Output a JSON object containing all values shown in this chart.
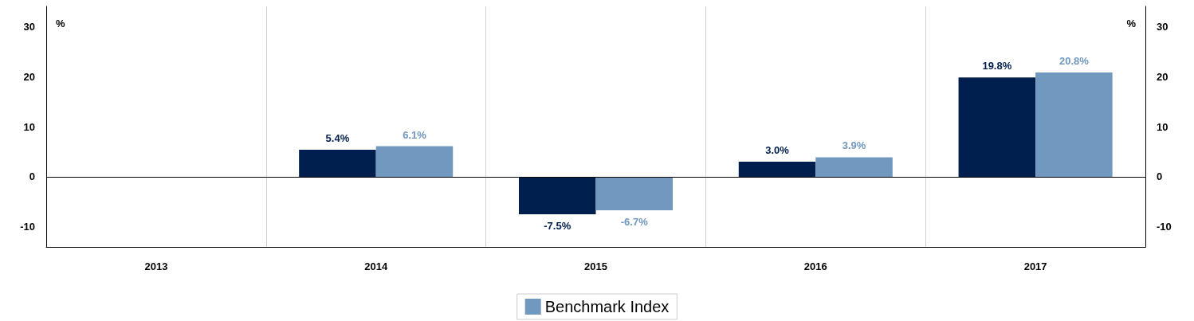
{
  "chart_data": {
    "type": "bar",
    "categories": [
      "2013",
      "2014",
      "2015",
      "2016",
      "2017"
    ],
    "series": [
      {
        "color": "#001f4e",
        "values": [
          null,
          5.4,
          -7.5,
          3.0,
          19.8
        ],
        "value_labels": [
          null,
          "5.4%",
          "-7.5%",
          "3.0%",
          "19.8%"
        ]
      },
      {
        "name": "Benchmark Index",
        "color": "#7199c0",
        "values": [
          null,
          6.1,
          -6.7,
          3.9,
          20.8
        ],
        "value_labels": [
          null,
          "6.1%",
          "-6.7%",
          "3.9%",
          "20.8%"
        ]
      }
    ],
    "ylabel": "%",
    "y2label": "%",
    "ylim": [
      -14,
      34
    ],
    "yticks": [
      -10,
      0,
      10,
      20,
      30
    ],
    "y2lim": [
      -14,
      34
    ],
    "y2ticks": [
      -10,
      0,
      10,
      20,
      30
    ],
    "ref_lines": [
      {
        "axis": "y",
        "value": 0,
        "color": "#000000"
      }
    ],
    "grid": "x",
    "legend": "bottom"
  }
}
